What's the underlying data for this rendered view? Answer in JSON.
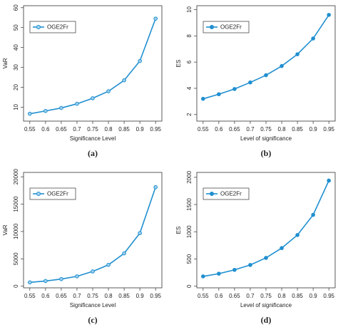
{
  "chart_data": [
    {
      "type": "line",
      "caption": "(a)",
      "xlabel": "Significance Level",
      "ylabel": "VaR",
      "x": [
        0.55,
        0.6,
        0.65,
        0.7,
        0.75,
        0.8,
        0.85,
        0.9,
        0.95
      ],
      "series": [
        {
          "name": "OGE2Fr",
          "color": "#1f8fd0",
          "marker": "open",
          "values": [
            6.7,
            8.1,
            9.6,
            11.7,
            14.5,
            18,
            23.5,
            33.2,
            54.5
          ]
        }
      ],
      "xlim": [
        0.53,
        0.97
      ],
      "xticks": [
        0.55,
        0.6,
        0.65,
        0.7,
        0.75,
        0.8,
        0.85,
        0.9,
        0.95
      ],
      "ylim": [
        3,
        61
      ],
      "yticks": [
        10,
        20,
        30,
        40,
        50,
        60
      ],
      "legend": "upper left"
    },
    {
      "type": "line",
      "caption": "(b)",
      "xlabel": "Level of significance",
      "ylabel": "ES",
      "x": [
        0.55,
        0.6,
        0.65,
        0.7,
        0.75,
        0.8,
        0.85,
        0.9,
        0.95
      ],
      "series": [
        {
          "name": "OGE2Fr",
          "color": "#1f8fd0",
          "marker": "filled",
          "values": [
            3.2,
            3.55,
            3.95,
            4.45,
            5.0,
            5.7,
            6.6,
            7.8,
            9.6
          ]
        }
      ],
      "xlim": [
        0.53,
        0.97
      ],
      "xticks": [
        0.55,
        0.6,
        0.65,
        0.7,
        0.75,
        0.8,
        0.85,
        0.9,
        0.95
      ],
      "ylim": [
        1.5,
        10.3
      ],
      "yticks": [
        2,
        4,
        6,
        8,
        10
      ],
      "legend": "upper left"
    },
    {
      "type": "line",
      "caption": "(c)",
      "xlabel": "Significance Level",
      "ylabel": "VaR",
      "x": [
        0.55,
        0.6,
        0.65,
        0.7,
        0.75,
        0.8,
        0.85,
        0.9,
        0.95
      ],
      "series": [
        {
          "name": "OGE2Fr",
          "color": "#1f8fd0",
          "marker": "open",
          "values": [
            700,
            950,
            1300,
            1800,
            2700,
            3900,
            6000,
            9700,
            18100
          ]
        }
      ],
      "xlim": [
        0.53,
        0.97
      ],
      "xticks": [
        0.55,
        0.6,
        0.65,
        0.7,
        0.75,
        0.8,
        0.85,
        0.9,
        0.95
      ],
      "ylim": [
        -300,
        20800
      ],
      "yticks": [
        0,
        5000,
        10000,
        15000,
        20000
      ],
      "legend": "upper left"
    },
    {
      "type": "line",
      "caption": "(d)",
      "xlabel": "Level of significance",
      "ylabel": "ES",
      "x": [
        0.55,
        0.6,
        0.65,
        0.7,
        0.75,
        0.8,
        0.85,
        0.9,
        0.95
      ],
      "series": [
        {
          "name": "OGE2Fr",
          "color": "#1f8fd0",
          "marker": "filled",
          "values": [
            180,
            230,
            300,
            390,
            520,
            700,
            940,
            1310,
            1940
          ]
        }
      ],
      "xlim": [
        0.53,
        0.97
      ],
      "xticks": [
        0.55,
        0.6,
        0.65,
        0.7,
        0.75,
        0.8,
        0.85,
        0.9,
        0.95
      ],
      "ylim": [
        -30,
        2090
      ],
      "yticks": [
        0,
        500,
        1000,
        1500,
        2000
      ],
      "legend": "upper left"
    }
  ]
}
